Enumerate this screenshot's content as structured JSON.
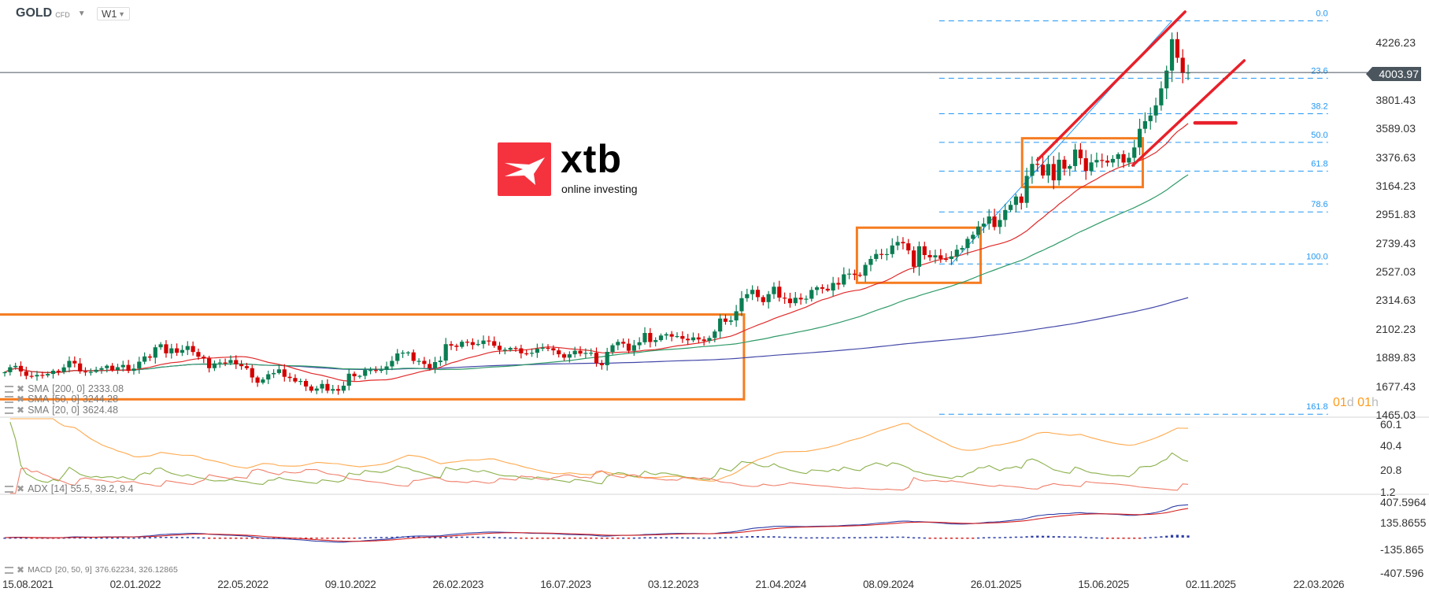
{
  "header": {
    "symbol": "GOLD",
    "instrument_type": "CFD",
    "timeframe": "W1"
  },
  "current_price": "4003.97",
  "countdown": {
    "days": "01",
    "d": "d",
    "hours": "01",
    "h": "h"
  },
  "logo": {
    "word": "xtb",
    "tagline": "online investing",
    "color": "#f5333f"
  },
  "legends": {
    "sma200": {
      "name": "SMA",
      "params": "[200,  0]",
      "value": "2333.08"
    },
    "sma50": {
      "name": "SMA",
      "params": "[50,  0]",
      "value": "3244.28"
    },
    "sma20": {
      "name": "SMA",
      "params": "[20,  0]",
      "value": "3624.48"
    },
    "adx": {
      "name": "ADX",
      "params": "[14]",
      "value": "55.5,  39.2,  9.4"
    },
    "macd": {
      "name": "MACD",
      "params": "[20, 50, 9]",
      "value": "376.62234,  326.12865"
    }
  },
  "colors": {
    "up": "#0a7d52",
    "down": "#d40000",
    "sma200": "#4348a8",
    "sma50": "#2f9a68",
    "sma20": "#e02a2a",
    "box": "#f57c20",
    "fib": "#2196f3",
    "trend": "#e8202a",
    "adx": "#ffa94d",
    "plus_di": "#8ab04a",
    "minus_di": "#f07f6a",
    "macd": "#2f3fa8",
    "signal": "#d42020"
  },
  "chart_data": {
    "type": "candlestick",
    "interval": "W1",
    "price_axis": [
      "4226.23",
      "3801.43",
      "3589.03",
      "3376.63",
      "3164.23",
      "2951.83",
      "2739.43",
      "2527.03",
      "2314.63",
      "2102.23",
      "1889.83",
      "1677.43",
      "1465.03"
    ],
    "x_axis": [
      "15.08.2021",
      "02.01.2022",
      "22.05.2022",
      "09.10.2022",
      "26.02.2023",
      "16.07.2023",
      "03.12.2023",
      "21.04.2024",
      "08.09.2024",
      "26.01.2025",
      "15.06.2025",
      "02.11.2025",
      "22.03.2026"
    ],
    "closes": [
      1781,
      1818,
      1828,
      1787,
      1754,
      1750,
      1761,
      1757,
      1768,
      1792,
      1783,
      1817,
      1865,
      1846,
      1787,
      1783,
      1783,
      1799,
      1811,
      1829,
      1797,
      1818,
      1835,
      1791,
      1808,
      1859,
      1898,
      1889,
      1966,
      1988,
      1921,
      1958,
      1925,
      1946,
      1975,
      1931,
      1896,
      1883,
      1811,
      1846,
      1853,
      1850,
      1871,
      1840,
      1826,
      1811,
      1742,
      1703,
      1727,
      1766,
      1775,
      1802,
      1747,
      1738,
      1712,
      1716,
      1675,
      1644,
      1660,
      1694,
      1644,
      1656,
      1644,
      1681,
      1770,
      1751,
      1754,
      1797,
      1797,
      1793,
      1798,
      1824,
      1865,
      1920,
      1926,
      1928,
      1865,
      1865,
      1842,
      1810,
      1856,
      1867,
      1989,
      1978,
      1969,
      2007,
      2004,
      1983,
      1990,
      2016,
      2011,
      1977,
      1946,
      1948,
      1961,
      1958,
      1921,
      1919,
      1925,
      1955,
      1962,
      1959,
      1943,
      1914,
      1889,
      1914,
      1940,
      1919,
      1924,
      1925,
      1848,
      1833,
      1932,
      1981,
      2006,
      1993,
      1940,
      1981,
      2003,
      2072,
      2005,
      2019,
      2053,
      2063,
      2045,
      2049,
      2029,
      2018,
      2039,
      2024,
      2013,
      2035,
      2083,
      2179,
      2155,
      2165,
      2233,
      2330,
      2360,
      2392,
      2338,
      2301,
      2360,
      2415,
      2334,
      2327,
      2293,
      2333,
      2321,
      2326,
      2391,
      2411,
      2400,
      2387,
      2443,
      2431,
      2507,
      2512,
      2503,
      2497,
      2577,
      2621,
      2658,
      2653,
      2657,
      2721,
      2747,
      2737,
      2684,
      2563,
      2715,
      2650,
      2633,
      2648,
      2622,
      2621,
      2640,
      2690,
      2702,
      2770,
      2800,
      2861,
      2883,
      2936,
      2858,
      2910,
      2984,
      3022,
      3084,
      3037,
      3237,
      3326,
      3319,
      3240,
      3325,
      3204,
      3357,
      3290,
      3310,
      3432,
      3368,
      3273,
      3337,
      3355,
      3350,
      3336,
      3363,
      3398,
      3336,
      3371,
      3448,
      3586,
      3643,
      3685,
      3760,
      3886,
      4018,
      4251,
      4113,
      3999,
      4003.97
    ],
    "indicators": {
      "sma": [
        200,
        50,
        20
      ],
      "adx_period": 14,
      "adx_axis": [
        "60.1",
        "40.4",
        "20.8",
        "1.2"
      ],
      "macd_params": [
        20,
        50,
        9
      ],
      "macd_axis": [
        "407.5964",
        "135.8655",
        "-135.865",
        "-407.596"
      ]
    },
    "annotations": {
      "boxes": [
        {
          "from": "2021-08-01",
          "to": "2024-04-03",
          "top": 2209,
          "bottom": 1580
        },
        {
          "from": "2024-08-28",
          "to": "2025-02-05",
          "top": 2853,
          "bottom": 2444
        },
        {
          "from": "2025-03-31",
          "to": "2025-09-04",
          "top": 3516,
          "bottom": 3154
        }
      ],
      "trendlines": [
        {
          "from": "2025-04-20",
          "p1": 3355,
          "to": "2025-10-29",
          "p2": 4454
        },
        {
          "from": "2025-08-22",
          "p1": 3315,
          "to": "2026-01-14",
          "p2": 4092
        }
      ],
      "level": {
        "from": "2025-11-11",
        "to": "2026-01-03",
        "price": 3630
      },
      "fibonacci": {
        "high": 4387,
        "low": 2584,
        "low_date": "2024-12-29",
        "high_date": "2025-10-12",
        "from": "2024-12-13",
        "to": "2026-05-03",
        "levels": [
          "0.0",
          "23.6",
          "38.2",
          "50.0",
          "61.8",
          "78.6",
          "100.0",
          "161.8"
        ]
      }
    }
  }
}
